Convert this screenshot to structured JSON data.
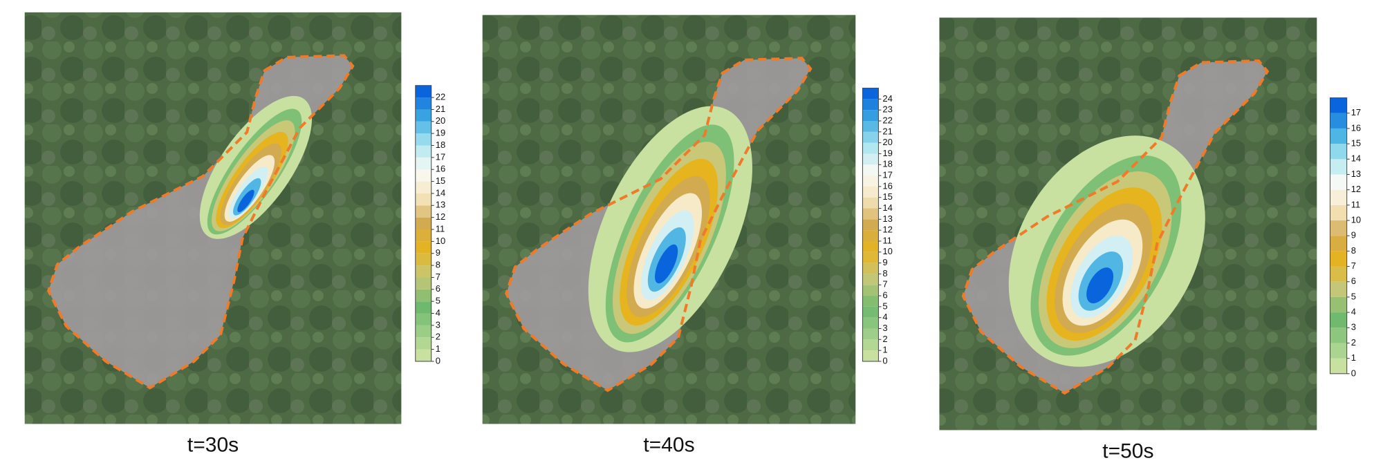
{
  "panels": [
    {
      "caption": "t=30s",
      "colorbar": {
        "ticks": [
          0,
          1,
          2,
          3,
          4,
          5,
          6,
          7,
          8,
          9,
          10,
          11,
          12,
          13,
          14,
          15,
          16,
          17,
          18,
          19,
          20,
          21,
          22
        ]
      }
    },
    {
      "caption": "t=40s",
      "colorbar": {
        "ticks": [
          0,
          1,
          2,
          3,
          4,
          5,
          6,
          7,
          8,
          9,
          10,
          11,
          12,
          13,
          14,
          15,
          16,
          17,
          18,
          19,
          20,
          21,
          22,
          23,
          24
        ]
      }
    },
    {
      "caption": "t=50s",
      "colorbar": {
        "ticks": [
          0,
          1,
          2,
          3,
          4,
          5,
          6,
          7,
          8,
          9,
          10,
          11,
          12,
          13,
          14,
          15,
          16,
          17
        ]
      }
    }
  ]
}
